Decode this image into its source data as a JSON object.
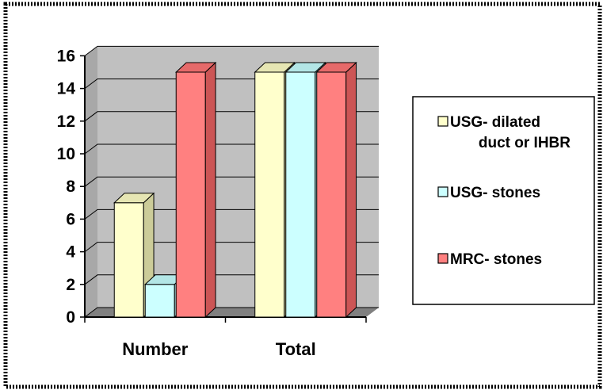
{
  "chart_data": {
    "type": "bar",
    "style": "3d-clustered-column",
    "categories": [
      "Number",
      "Total"
    ],
    "series": [
      {
        "name": "USG- dilated duct or IHBR",
        "values": [
          7,
          15
        ],
        "color": "#FFFFCC",
        "side_color": "#CCCC99",
        "top_color": "#E6E6B3",
        "legend_lines": [
          "USG- dilated",
          "duct or IHBR"
        ]
      },
      {
        "name": "USG- stones",
        "values": [
          2,
          15
        ],
        "color": "#CCFFFF",
        "side_color": "#99CCCC",
        "top_color": "#B3E6E6",
        "legend_lines": [
          "USG- stones"
        ]
      },
      {
        "name": "MRC- stones",
        "values": [
          15,
          15
        ],
        "color": "#FF8080",
        "side_color": "#CC5555",
        "top_color": "#E66A6A",
        "legend_lines": [
          "MRC- stones"
        ]
      }
    ],
    "ylim": [
      0,
      16
    ],
    "yticks": [
      0,
      2,
      4,
      6,
      8,
      10,
      12,
      14,
      16
    ],
    "title": "",
    "xlabel": "",
    "ylabel": "",
    "grid": true,
    "legend_position": "right",
    "colors": {
      "wall": "#C0C0C0",
      "floor": "#808080",
      "gridline": "#000000",
      "frame_border": "#000000"
    }
  }
}
